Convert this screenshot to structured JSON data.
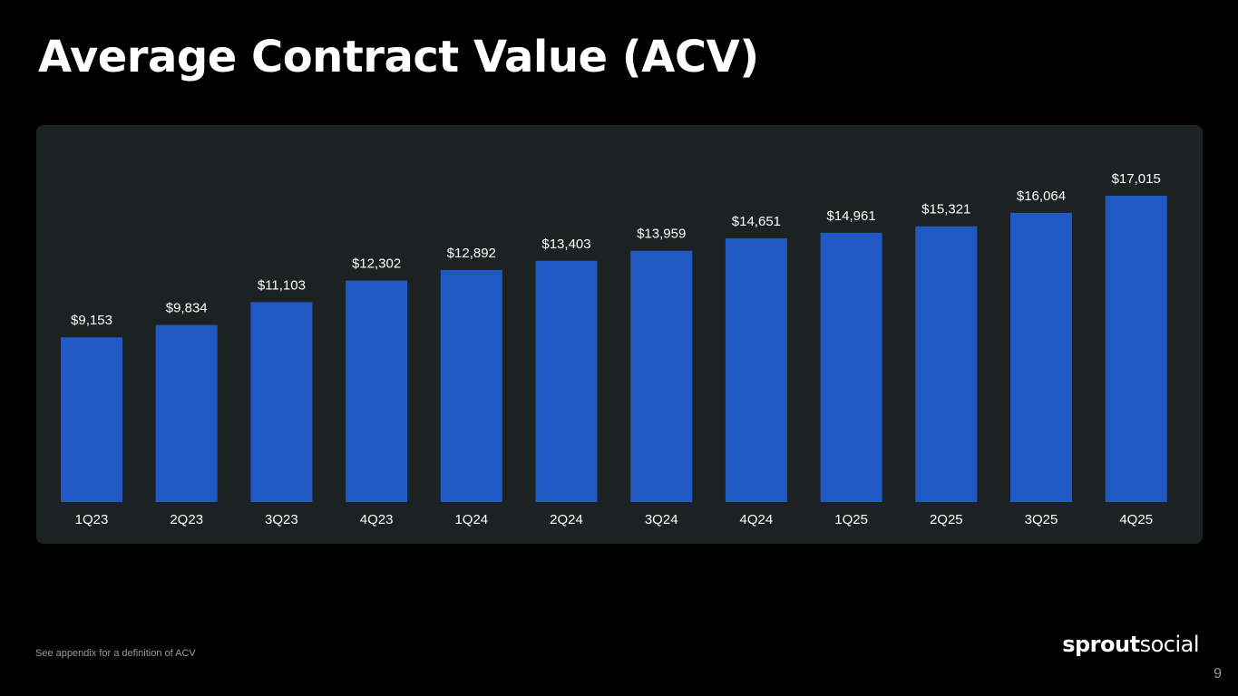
{
  "slide": {
    "title": "Average Contract Value (ACV)",
    "footnote": "See appendix for a definition of ACV",
    "page_number": "9",
    "logo": {
      "bold": "sprout",
      "light": "social"
    }
  },
  "colors": {
    "background": "#000000",
    "panel": "#1c2121",
    "bar": "#2159c4",
    "text": "#ffffff"
  },
  "chart_data": {
    "type": "bar",
    "title": "Average Contract Value (ACV)",
    "categories": [
      "1Q23",
      "2Q23",
      "3Q23",
      "4Q23",
      "1Q24",
      "2Q24",
      "3Q24",
      "4Q24",
      "1Q25",
      "2Q25",
      "3Q25",
      "4Q25"
    ],
    "values": [
      9153,
      9834,
      11103,
      12302,
      12892,
      13403,
      13959,
      14651,
      14961,
      15321,
      16064,
      17015
    ],
    "value_labels": [
      "$9,153",
      "$9,834",
      "$11,103",
      "$12,302",
      "$12,892",
      "$13,403",
      "$13,959",
      "$14,651",
      "$14,961",
      "$15,321",
      "$16,064",
      "$17,015"
    ],
    "xlabel": "",
    "ylabel": "",
    "y_axis_visible": false,
    "grid": false,
    "legend": "none",
    "data_labels": "above bars"
  }
}
